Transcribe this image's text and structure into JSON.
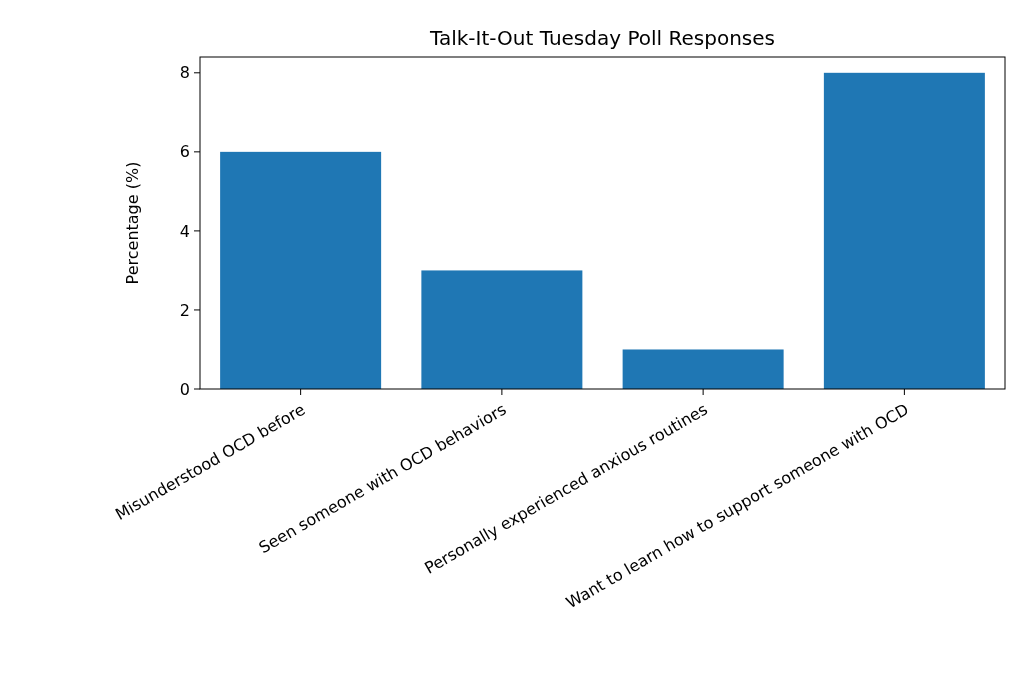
{
  "chart_data": {
    "type": "bar",
    "title": "Talk-It-Out Tuesday Poll Responses",
    "ylabel": "Percentage (%)",
    "categories": [
      "Misunderstood OCD before",
      "Seen someone with OCD behaviors",
      "Personally experienced anxious routines",
      "Want to learn how to support someone with OCD"
    ],
    "values": [
      6,
      3,
      1,
      8
    ],
    "color": "#1f77b4",
    "ylim": [
      0,
      8.4
    ],
    "yticks": [
      0,
      2,
      4,
      6,
      8
    ],
    "grid": false
  }
}
